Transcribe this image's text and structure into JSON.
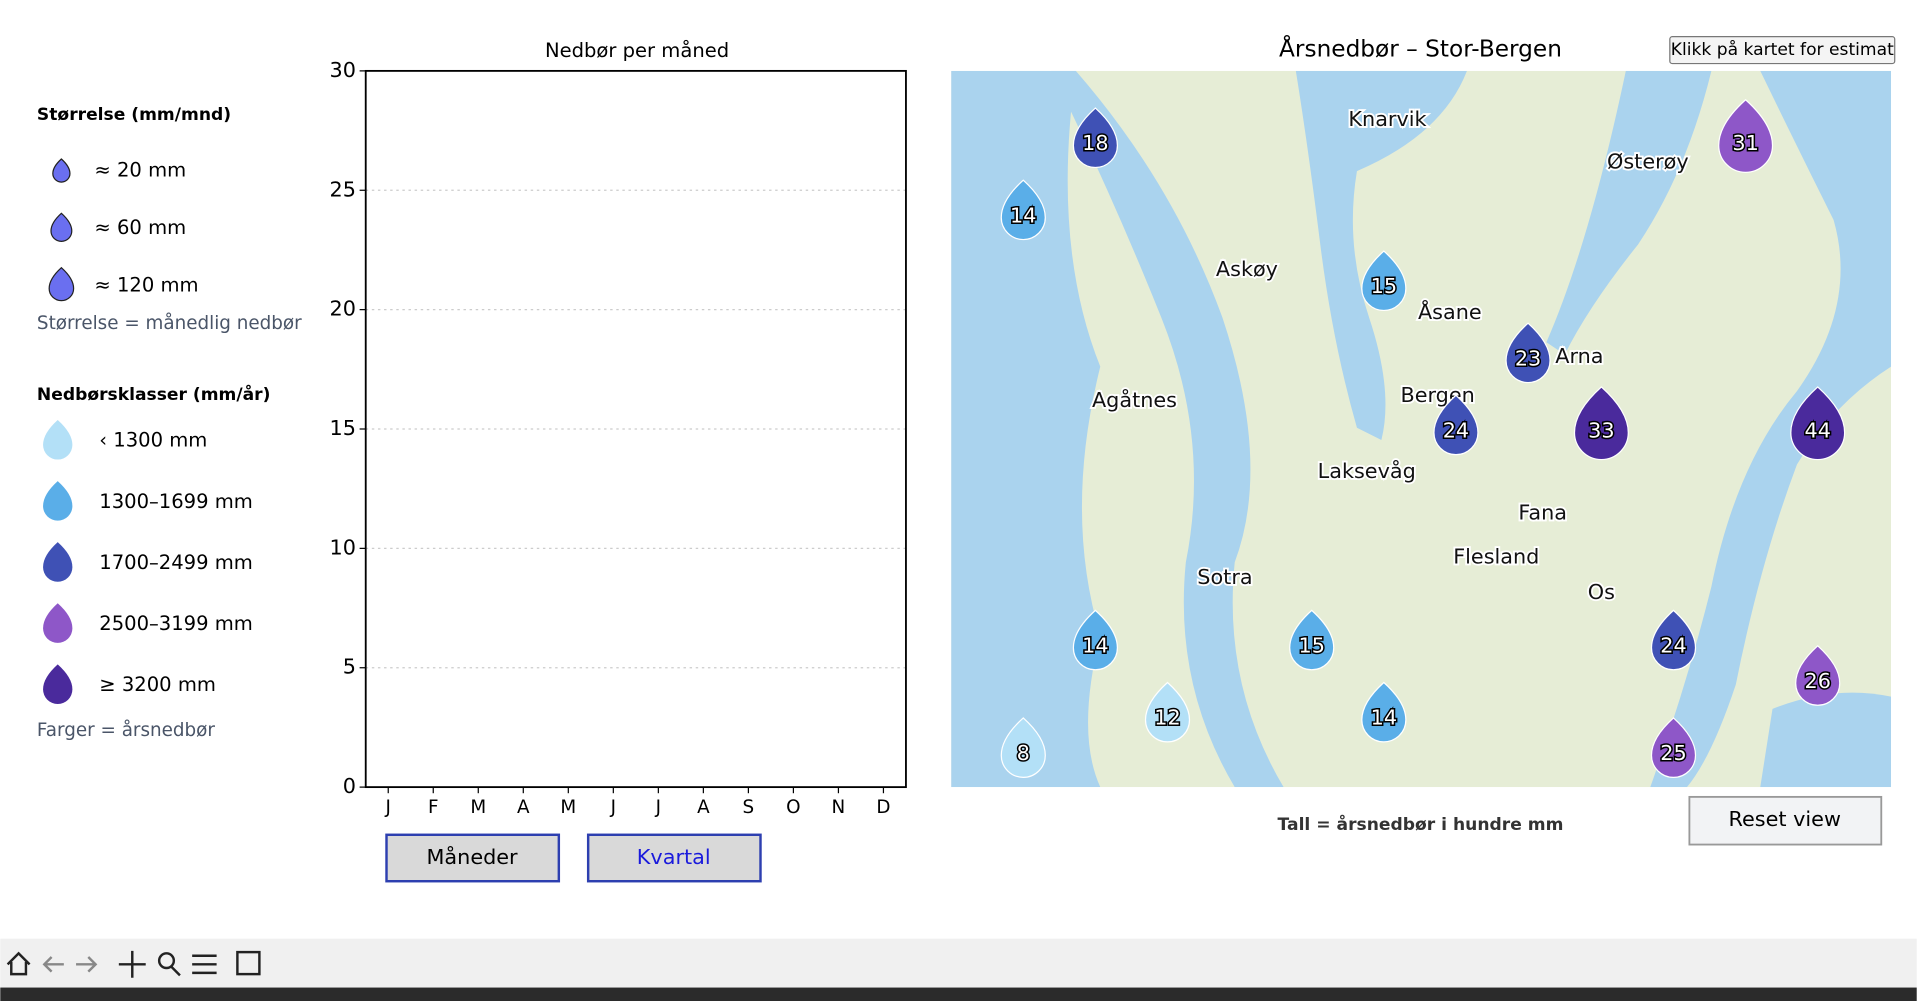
{
  "legend": {
    "size_title": "Størrelse (mm/mnd)",
    "sizes": [
      "≈ 20 mm",
      "≈ 60 mm",
      "≈ 120 mm"
    ],
    "size_note": "Størrelse = månedlig nedbør",
    "class_title": "Nedbørsklasser (mm/år)",
    "classes": [
      {
        "label": "‹ 1300 mm",
        "color": "#b3e0f7"
      },
      {
        "label": "1300–1699 mm",
        "color": "#5aaee8"
      },
      {
        "label": "1700–2499 mm",
        "color": "#3f51b5"
      },
      {
        "label": "2500–3199 mm",
        "color": "#8e57c8"
      },
      {
        "label": "≥ 3200 mm",
        "color": "#4a2a9c"
      }
    ],
    "class_note": "Farger = årsnedbør"
  },
  "chart": {
    "title": "Nedbør per måned",
    "categories": [
      "J",
      "F",
      "M",
      "A",
      "M",
      "J",
      "J",
      "A",
      "S",
      "O",
      "N",
      "D"
    ],
    "ylim": [
      0,
      30
    ],
    "yticks": [
      0,
      5,
      10,
      15,
      20,
      25,
      30
    ],
    "grid": true
  },
  "buttons": [
    "Måneder",
    "Kvartal"
  ],
  "map": {
    "title": "Årsnedbør – Stor-Bergen",
    "hint_button": "Klikk på kartet for estimat",
    "caption": "Tall = årsnedbør i hundre mm",
    "reset_button": "Reset view",
    "places": [
      "Knarvik",
      "Østerøy",
      "Askøy",
      "Åsane",
      "Arna",
      "Bergen",
      "Agåtnes",
      "Laksevåg",
      "Fana",
      "Flesland",
      "Sotra",
      "Os"
    ],
    "markers": [
      {
        "value": 18,
        "color": "#3f51b5"
      },
      {
        "value": 14,
        "color": "#5aaee8"
      },
      {
        "value": 15,
        "color": "#5aaee8"
      },
      {
        "value": 23,
        "color": "#3f51b5"
      },
      {
        "value": 24,
        "color": "#3f51b5"
      },
      {
        "value": 33,
        "color": "#4a2a9c"
      },
      {
        "value": 44,
        "color": "#4a2a9c"
      },
      {
        "value": 31,
        "color": "#8e57c8"
      },
      {
        "value": 14,
        "color": "#5aaee8"
      },
      {
        "value": 15,
        "color": "#5aaee8"
      },
      {
        "value": 12,
        "color": "#b3e0f7"
      },
      {
        "value": 14,
        "color": "#5aaee8"
      },
      {
        "value": 8,
        "color": "#b3e0f7"
      },
      {
        "value": 24,
        "color": "#3f51b5"
      },
      {
        "value": 26,
        "color": "#8e57c8"
      },
      {
        "value": 25,
        "color": "#8e57c8"
      }
    ]
  }
}
